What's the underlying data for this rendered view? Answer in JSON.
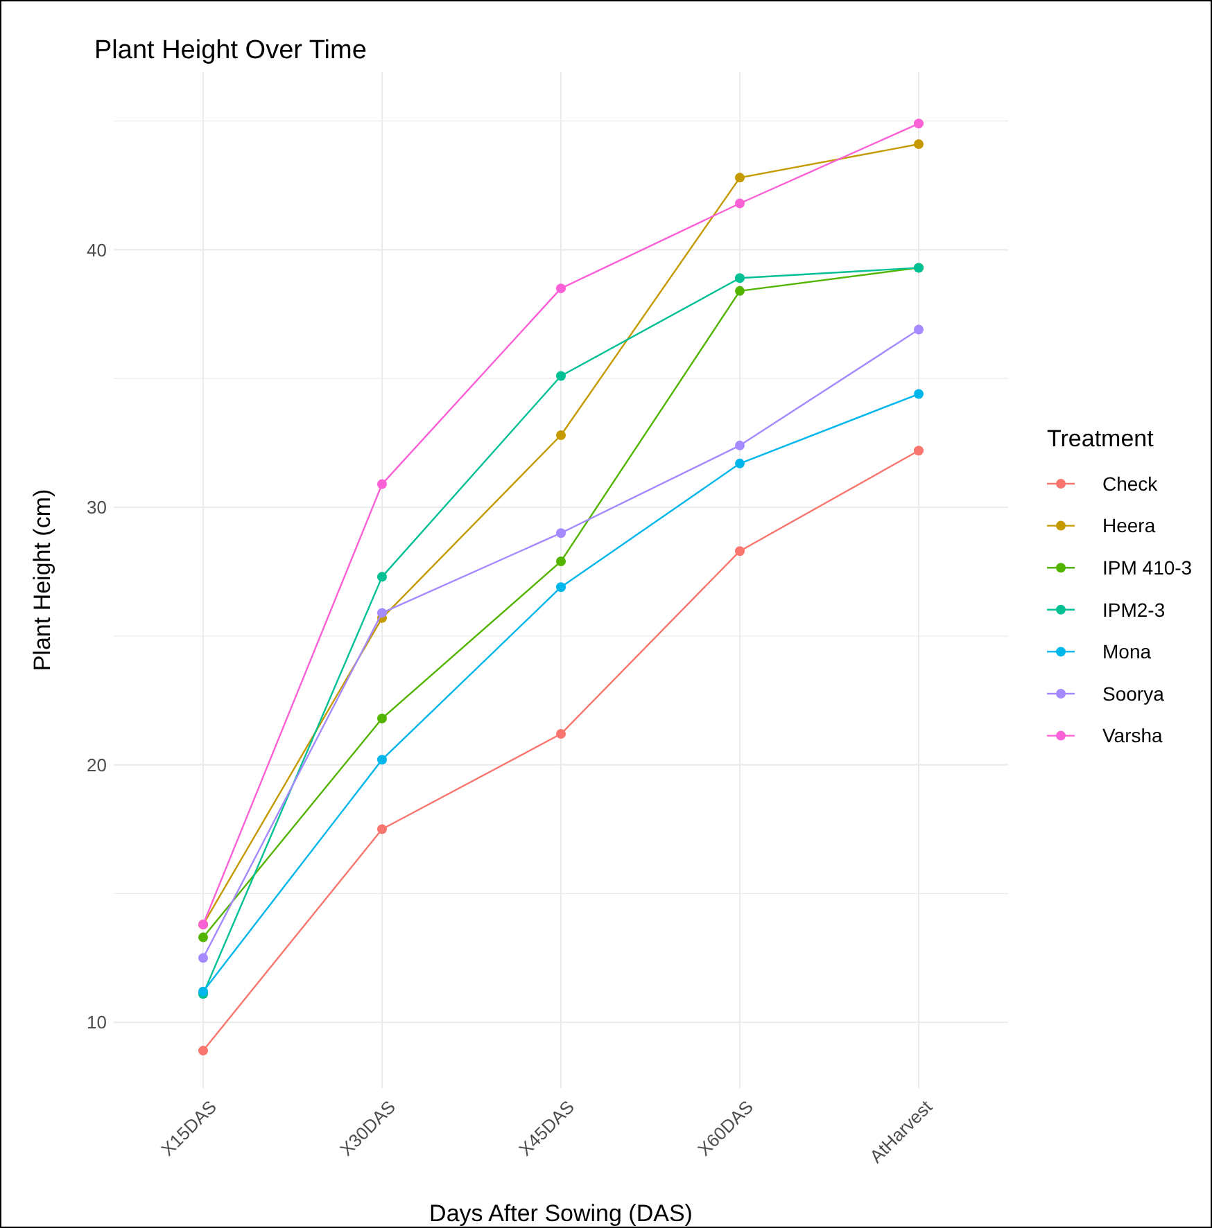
{
  "chart_data": {
    "type": "line",
    "title": "Plant Height Over Time",
    "xlabel": "Days After Sowing (DAS)",
    "ylabel": "Plant Height (cm)",
    "legend_title": "Treatment",
    "categories": [
      "X15DAS",
      "X30DAS",
      "X45DAS",
      "X60DAS",
      "AtHarvest"
    ],
    "series": [
      {
        "name": "Check",
        "color": "#f8766d",
        "values": [
          8.9,
          17.5,
          21.2,
          28.3,
          32.2
        ]
      },
      {
        "name": "Heera",
        "color": "#c49a00",
        "values": [
          13.8,
          25.7,
          32.8,
          42.8,
          44.1
        ]
      },
      {
        "name": "IPM 410-3",
        "color": "#53b400",
        "values": [
          13.3,
          21.8,
          27.9,
          38.4,
          39.3
        ]
      },
      {
        "name": "IPM2-3",
        "color": "#00c094",
        "values": [
          11.1,
          27.3,
          35.1,
          38.9,
          39.3
        ]
      },
      {
        "name": "Mona",
        "color": "#00b6eb",
        "values": [
          11.2,
          20.2,
          26.9,
          31.7,
          34.4
        ]
      },
      {
        "name": "Soorya",
        "color": "#a58aff",
        "values": [
          12.5,
          25.9,
          29.0,
          32.4,
          36.9
        ]
      },
      {
        "name": "Varsha",
        "color": "#fb61d7",
        "values": [
          13.8,
          30.9,
          38.5,
          41.8,
          44.9
        ]
      }
    ],
    "ylim": [
      7.45,
      46.9
    ],
    "yticks": [
      10,
      20,
      30,
      40
    ],
    "grid": true,
    "legend": "right",
    "marker": "circle",
    "line_style": "solid"
  }
}
